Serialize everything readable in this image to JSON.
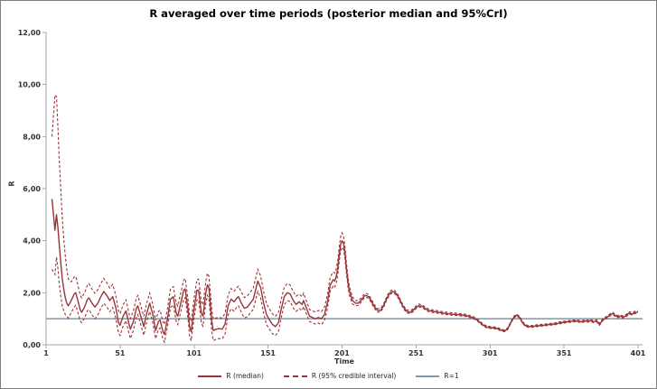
{
  "chart_data": {
    "type": "line",
    "title": "R averaged over time periods (posterior median and 95%CrI)",
    "xlabel": "Time",
    "ylabel": "R",
    "xlim": [
      1,
      405
    ],
    "ylim": [
      0,
      12
    ],
    "grid": false,
    "legend_position": "bottom-center",
    "x_axis": {
      "title": "Time",
      "ticks": [
        {
          "t": 1,
          "label": "1"
        },
        {
          "t": 51,
          "label": "51"
        },
        {
          "t": 101,
          "label": "101"
        },
        {
          "t": 151,
          "label": "151"
        },
        {
          "t": 201,
          "label": "201"
        },
        {
          "t": 251,
          "label": "251"
        },
        {
          "t": 301,
          "label": "301"
        },
        {
          "t": 351,
          "label": "351"
        },
        {
          "t": 401,
          "label": "401"
        }
      ]
    },
    "y_axis": {
      "title": "R",
      "ticks": [
        {
          "v": 0,
          "label": "0,00"
        },
        {
          "v": 2,
          "label": "2,00"
        },
        {
          "v": 4,
          "label": "4,00"
        },
        {
          "v": 6,
          "label": "6,00"
        },
        {
          "v": 8,
          "label": "8,00"
        },
        {
          "v": 10,
          "label": "10,00"
        },
        {
          "v": 12,
          "label": "12,00"
        }
      ]
    },
    "colors": {
      "median": "#993437",
      "ci": "#993437",
      "reference": "#8496AA",
      "axis": "#A6A6A6",
      "text": "#333333"
    },
    "reference_line": {
      "label": "R=1",
      "value": 1
    },
    "legend": [
      {
        "label": "R (median)",
        "style": "solid",
        "color": "#993437"
      },
      {
        "label": "R (95% credible interval)",
        "style": "dashed",
        "color": "#993437"
      },
      {
        "label": "R=1",
        "style": "solid",
        "color": "#8496AA"
      }
    ],
    "series": [
      {
        "name": "R (median)",
        "style": "solid",
        "points": [
          [
            5,
            5.6
          ],
          [
            6,
            5.0
          ],
          [
            7,
            4.4
          ],
          [
            8,
            5.0
          ],
          [
            9,
            4.5
          ],
          [
            10,
            3.8
          ],
          [
            11,
            3.1
          ],
          [
            12,
            2.5
          ],
          [
            13,
            2.1
          ],
          [
            14,
            1.8
          ],
          [
            15,
            1.6
          ],
          [
            16,
            1.5
          ],
          [
            18,
            1.7
          ],
          [
            20,
            1.95
          ],
          [
            21,
            2.0
          ],
          [
            22,
            1.8
          ],
          [
            24,
            1.35
          ],
          [
            25,
            1.25
          ],
          [
            27,
            1.45
          ],
          [
            29,
            1.75
          ],
          [
            30,
            1.8
          ],
          [
            32,
            1.6
          ],
          [
            34,
            1.45
          ],
          [
            36,
            1.6
          ],
          [
            38,
            1.85
          ],
          [
            40,
            2.05
          ],
          [
            42,
            1.9
          ],
          [
            44,
            1.7
          ],
          [
            46,
            1.85
          ],
          [
            48,
            1.45
          ],
          [
            50,
            0.85
          ],
          [
            51,
            0.75
          ],
          [
            53,
            1.1
          ],
          [
            55,
            1.3
          ],
          [
            57,
            0.8
          ],
          [
            58,
            0.6
          ],
          [
            60,
            0.9
          ],
          [
            62,
            1.4
          ],
          [
            63,
            1.5
          ],
          [
            65,
            1.1
          ],
          [
            67,
            0.7
          ],
          [
            69,
            1.2
          ],
          [
            71,
            1.6
          ],
          [
            73,
            1.2
          ],
          [
            75,
            0.55
          ],
          [
            77,
            0.9
          ],
          [
            78,
            0.95
          ],
          [
            80,
            0.5
          ],
          [
            81,
            0.4
          ],
          [
            83,
            1.0
          ],
          [
            85,
            1.75
          ],
          [
            87,
            1.85
          ],
          [
            89,
            1.2
          ],
          [
            90,
            1.1
          ],
          [
            92,
            1.6
          ],
          [
            94,
            2.1
          ],
          [
            95,
            2.15
          ],
          [
            97,
            1.3
          ],
          [
            98,
            0.7
          ],
          [
            99,
            0.5
          ],
          [
            101,
            1.4
          ],
          [
            103,
            2.1
          ],
          [
            104,
            2.1
          ],
          [
            106,
            1.2
          ],
          [
            107,
            1.1
          ],
          [
            109,
            2.0
          ],
          [
            110,
            2.3
          ],
          [
            111,
            2.2
          ],
          [
            113,
            0.9
          ],
          [
            114,
            0.55
          ],
          [
            116,
            0.6
          ],
          [
            118,
            0.62
          ],
          [
            120,
            0.6
          ],
          [
            122,
            0.8
          ],
          [
            124,
            1.5
          ],
          [
            126,
            1.75
          ],
          [
            128,
            1.65
          ],
          [
            130,
            1.8
          ],
          [
            131,
            1.85
          ],
          [
            133,
            1.6
          ],
          [
            135,
            1.4
          ],
          [
            137,
            1.45
          ],
          [
            139,
            1.6
          ],
          [
            141,
            1.75
          ],
          [
            143,
            2.2
          ],
          [
            144,
            2.45
          ],
          [
            146,
            2.2
          ],
          [
            148,
            1.6
          ],
          [
            150,
            1.15
          ],
          [
            152,
            0.95
          ],
          [
            154,
            0.78
          ],
          [
            156,
            0.7
          ],
          [
            158,
            0.85
          ],
          [
            160,
            1.4
          ],
          [
            162,
            1.85
          ],
          [
            164,
            2.0
          ],
          [
            166,
            1.95
          ],
          [
            168,
            1.7
          ],
          [
            170,
            1.55
          ],
          [
            172,
            1.65
          ],
          [
            174,
            1.55
          ],
          [
            175,
            1.7
          ],
          [
            177,
            1.4
          ],
          [
            179,
            1.1
          ],
          [
            181,
            1.05
          ],
          [
            183,
            1.0
          ],
          [
            185,
            1.05
          ],
          [
            187,
            1.0
          ],
          [
            189,
            1.15
          ],
          [
            191,
            1.6
          ],
          [
            193,
            2.3
          ],
          [
            195,
            2.5
          ],
          [
            196,
            2.45
          ],
          [
            197,
            2.6
          ],
          [
            198,
            2.9
          ],
          [
            199,
            3.4
          ],
          [
            200,
            3.85
          ],
          [
            201,
            4.0
          ],
          [
            202,
            3.9
          ],
          [
            203,
            3.5
          ],
          [
            204,
            2.9
          ],
          [
            205,
            2.4
          ],
          [
            206,
            2.05
          ],
          [
            208,
            1.7
          ],
          [
            210,
            1.6
          ],
          [
            212,
            1.6
          ],
          [
            214,
            1.72
          ],
          [
            216,
            1.87
          ],
          [
            217,
            1.9
          ],
          [
            219,
            1.85
          ],
          [
            221,
            1.65
          ],
          [
            223,
            1.45
          ],
          [
            225,
            1.32
          ],
          [
            227,
            1.32
          ],
          [
            229,
            1.5
          ],
          [
            231,
            1.75
          ],
          [
            233,
            1.97
          ],
          [
            235,
            2.05
          ],
          [
            237,
            2.0
          ],
          [
            239,
            1.85
          ],
          [
            241,
            1.6
          ],
          [
            243,
            1.4
          ],
          [
            245,
            1.27
          ],
          [
            247,
            1.25
          ],
          [
            249,
            1.32
          ],
          [
            251,
            1.44
          ],
          [
            253,
            1.5
          ],
          [
            255,
            1.48
          ],
          [
            257,
            1.4
          ],
          [
            259,
            1.33
          ],
          [
            261,
            1.3
          ],
          [
            265,
            1.26
          ],
          [
            269,
            1.22
          ],
          [
            273,
            1.19
          ],
          [
            277,
            1.17
          ],
          [
            281,
            1.15
          ],
          [
            285,
            1.12
          ],
          [
            289,
            1.05
          ],
          [
            291,
            1.0
          ],
          [
            293,
            0.92
          ],
          [
            295,
            0.82
          ],
          [
            297,
            0.73
          ],
          [
            299,
            0.68
          ],
          [
            301,
            0.66
          ],
          [
            305,
            0.64
          ],
          [
            307,
            0.6
          ],
          [
            309,
            0.55
          ],
          [
            311,
            0.53
          ],
          [
            313,
            0.62
          ],
          [
            315,
            0.85
          ],
          [
            317,
            1.05
          ],
          [
            319,
            1.14
          ],
          [
            321,
            1.05
          ],
          [
            323,
            0.85
          ],
          [
            325,
            0.73
          ],
          [
            327,
            0.7
          ],
          [
            329,
            0.7
          ],
          [
            333,
            0.73
          ],
          [
            337,
            0.75
          ],
          [
            341,
            0.78
          ],
          [
            345,
            0.8
          ],
          [
            349,
            0.85
          ],
          [
            353,
            0.88
          ],
          [
            357,
            0.91
          ],
          [
            359,
            0.92
          ],
          [
            361,
            0.9
          ],
          [
            363,
            0.88
          ],
          [
            365,
            0.92
          ],
          [
            367,
            0.9
          ],
          [
            369,
            0.93
          ],
          [
            371,
            0.88
          ],
          [
            373,
            0.92
          ],
          [
            375,
            0.78
          ],
          [
            377,
            0.95
          ],
          [
            379,
            1.02
          ],
          [
            381,
            1.1
          ],
          [
            383,
            1.18
          ],
          [
            384,
            1.2
          ],
          [
            385,
            1.15
          ],
          [
            387,
            1.08
          ],
          [
            389,
            1.1
          ],
          [
            391,
            1.06
          ],
          [
            393,
            1.12
          ],
          [
            395,
            1.22
          ],
          [
            397,
            1.18
          ],
          [
            399,
            1.24
          ],
          [
            401,
            1.26
          ]
        ]
      },
      {
        "name": "R (95% credible interval)",
        "style": "dashed",
        "note": "band drawn as median minus/plus interpolated halfwidths [t, below, above]",
        "halfwidth_points": [
          [
            5,
            2.7,
            2.4
          ],
          [
            7,
            1.7,
            5.2
          ],
          [
            10,
            1.5,
            3.2
          ],
          [
            13,
            0.8,
            1.9
          ],
          [
            15,
            0.5,
            1.3
          ],
          [
            17,
            0.45,
            0.75
          ],
          [
            20,
            0.5,
            0.65
          ],
          [
            25,
            0.4,
            0.55
          ],
          [
            30,
            0.45,
            0.55
          ],
          [
            40,
            0.45,
            0.5
          ],
          [
            50,
            0.4,
            0.45
          ],
          [
            60,
            0.35,
            0.4
          ],
          [
            80,
            0.3,
            0.38
          ],
          [
            100,
            0.35,
            0.4
          ],
          [
            110,
            0.4,
            0.45
          ],
          [
            130,
            0.35,
            0.4
          ],
          [
            145,
            0.4,
            0.45
          ],
          [
            165,
            0.3,
            0.35
          ],
          [
            180,
            0.2,
            0.25
          ],
          [
            195,
            0.25,
            0.3
          ],
          [
            201,
            0.25,
            0.3
          ],
          [
            205,
            0.18,
            0.2
          ],
          [
            210,
            0.1,
            0.1
          ],
          [
            215,
            0.07,
            0.08
          ],
          [
            230,
            0.06,
            0.07
          ],
          [
            250,
            0.05,
            0.06
          ],
          [
            280,
            0.04,
            0.05
          ],
          [
            300,
            0.03,
            0.04
          ],
          [
            350,
            0.03,
            0.04
          ],
          [
            401,
            0.04,
            0.05
          ]
        ]
      }
    ]
  }
}
